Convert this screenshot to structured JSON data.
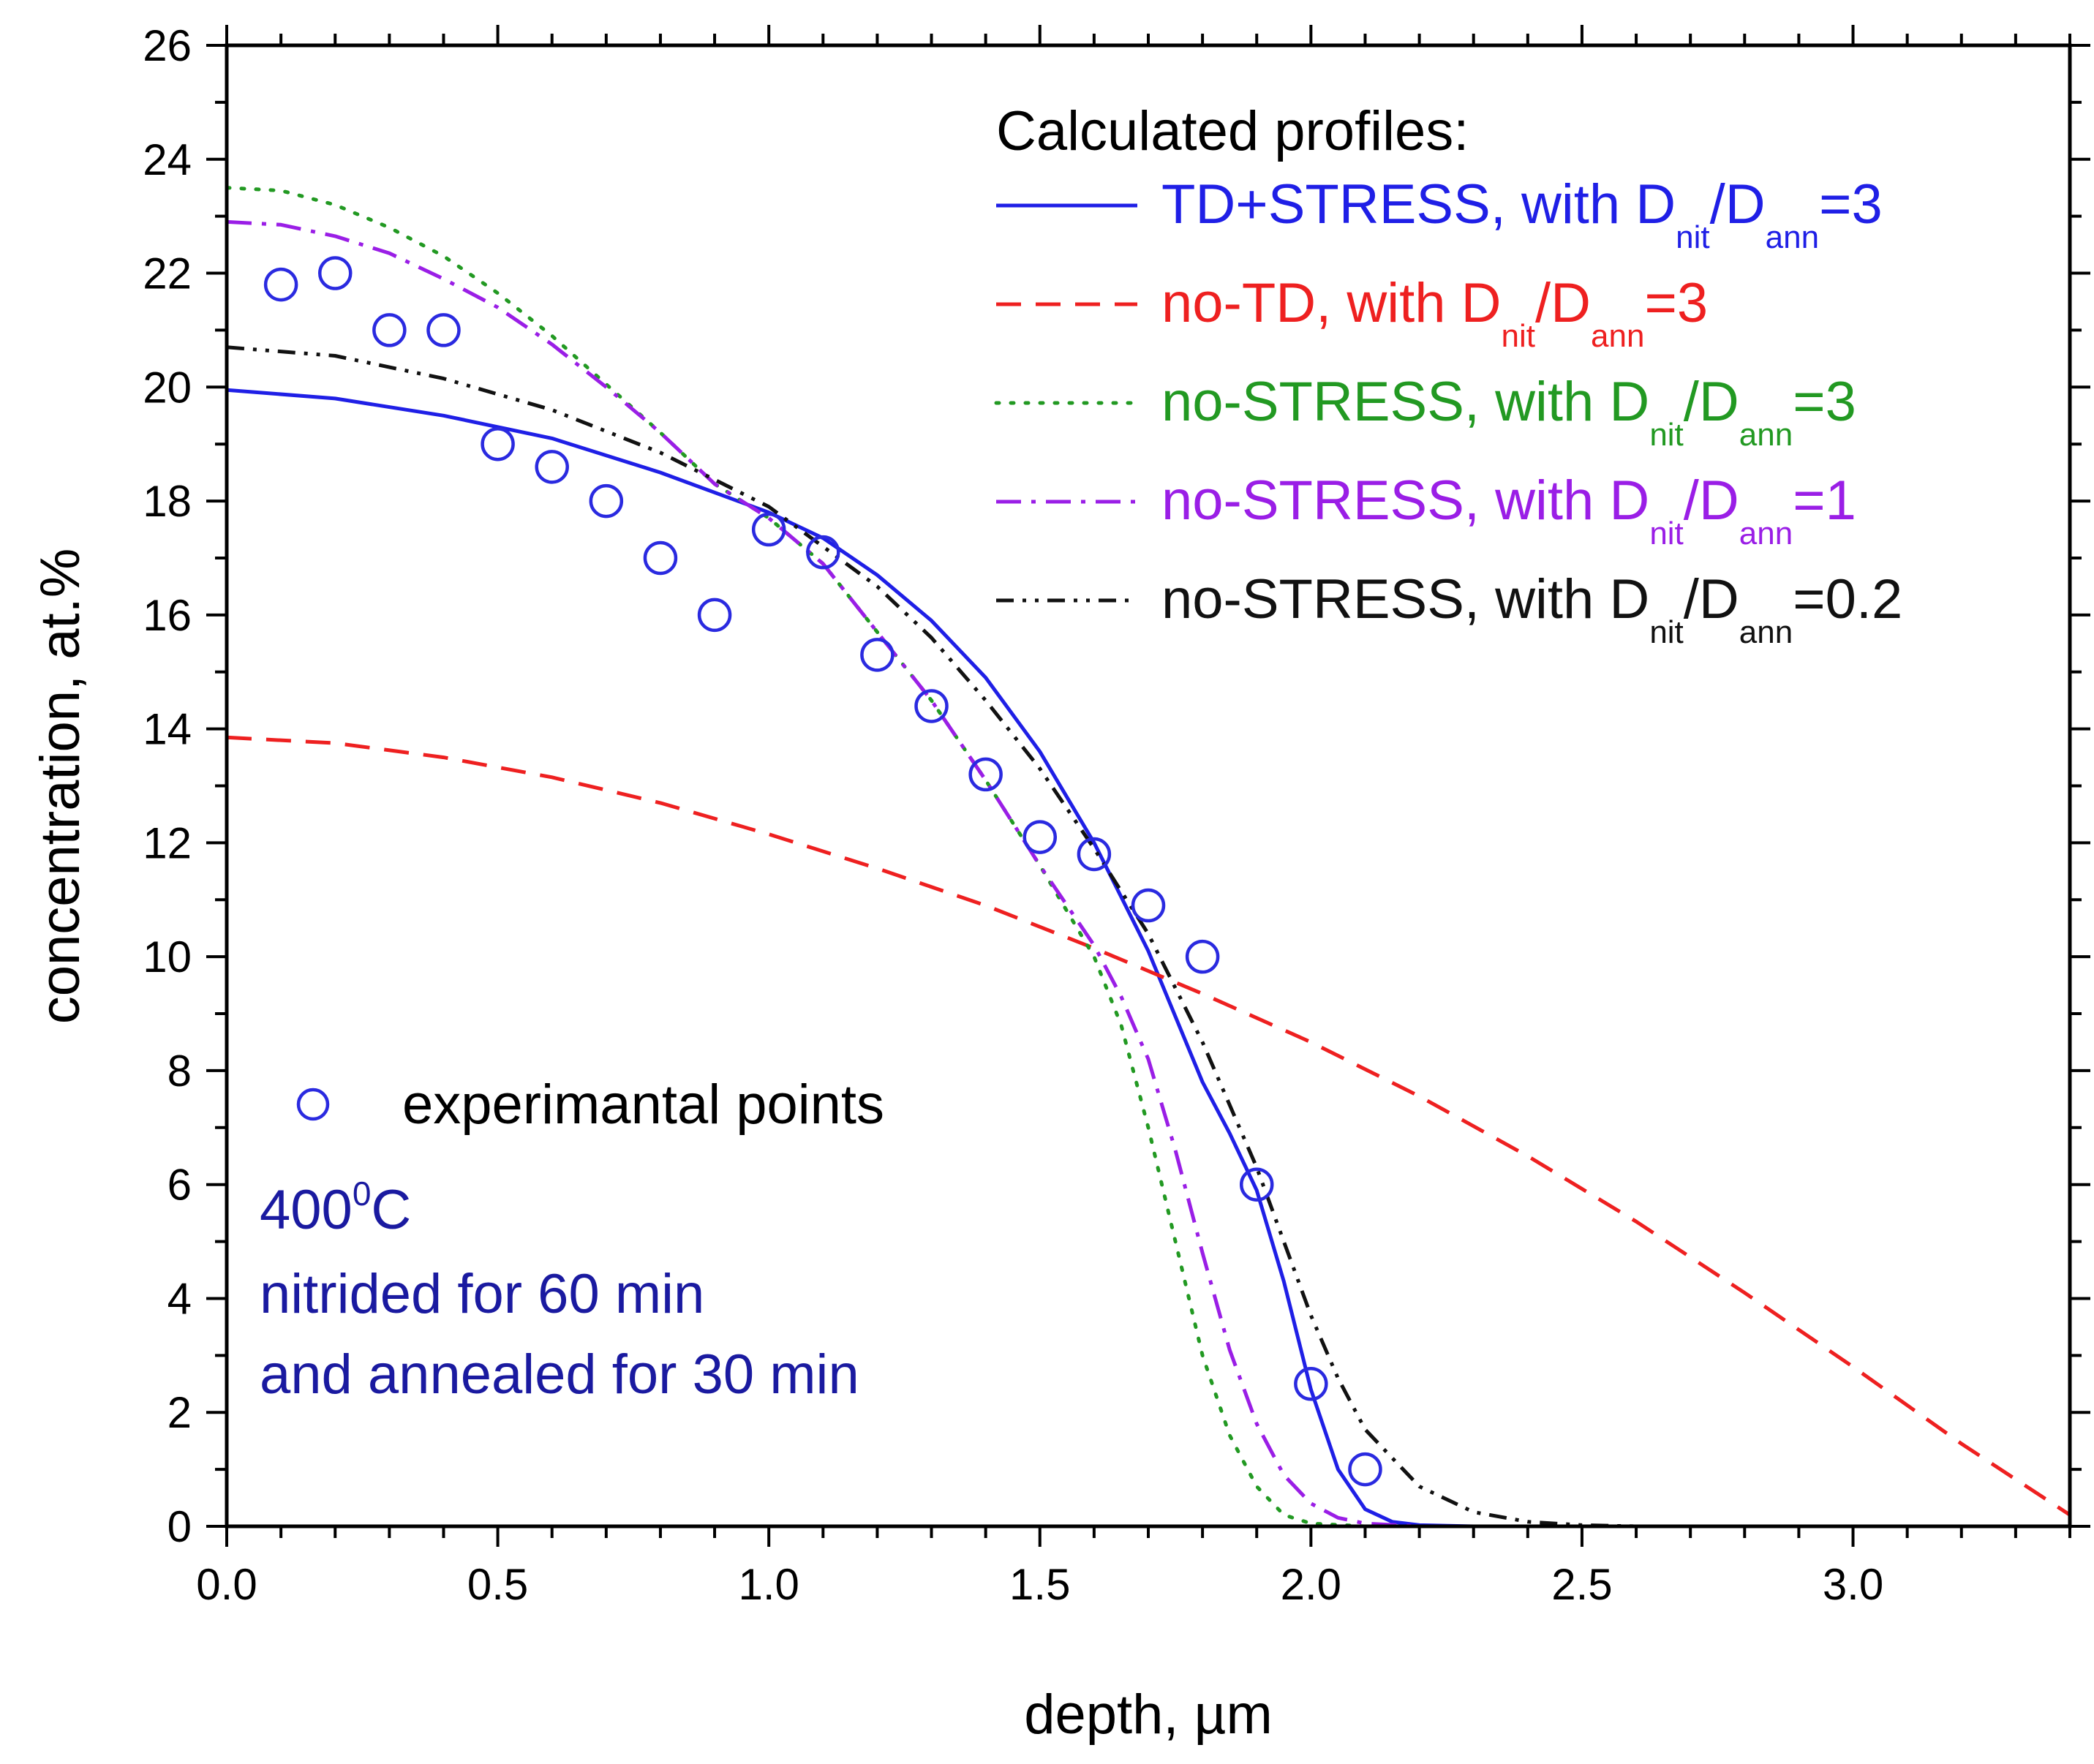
{
  "chart_data": {
    "type": "line",
    "xlabel": "depth, µm",
    "ylabel": "concentration, at.%",
    "xlim": [
      0,
      3.4
    ],
    "ylim": [
      0,
      26
    ],
    "x_ticks": [
      "0.0",
      "0.5",
      "1.0",
      "1.5",
      "2.0",
      "2.5",
      "3.0"
    ],
    "x_tick_values": [
      0,
      0.5,
      1.0,
      1.5,
      2.0,
      2.5,
      3.0
    ],
    "y_ticks": [
      "0",
      "2",
      "4",
      "6",
      "8",
      "10",
      "12",
      "14",
      "16",
      "18",
      "20",
      "22",
      "24",
      "26"
    ],
    "y_tick_values": [
      0,
      2,
      4,
      6,
      8,
      10,
      12,
      14,
      16,
      18,
      20,
      22,
      24,
      26
    ],
    "grid": false,
    "legend_title": "Calculated profiles:",
    "series": [
      {
        "name": "TD+STRESS, with D_nit/D_ann=3",
        "label_main": "TD+STRESS, with D",
        "label_sub1": "nit",
        "label_mid": "/D",
        "label_sub2": "ann",
        "label_end": "=3",
        "color": "#1f1fe6",
        "style": "solid",
        "x": [
          0,
          0.2,
          0.4,
          0.6,
          0.8,
          1.0,
          1.1,
          1.2,
          1.3,
          1.4,
          1.5,
          1.6,
          1.7,
          1.8,
          1.85,
          1.9,
          1.95,
          2.0,
          2.05,
          2.1,
          2.15,
          2.2,
          2.3,
          2.5,
          3.4
        ],
        "y": [
          19.95,
          19.8,
          19.5,
          19.1,
          18.5,
          17.8,
          17.35,
          16.7,
          15.9,
          14.9,
          13.6,
          12.0,
          10.1,
          7.8,
          6.9,
          5.9,
          4.3,
          2.4,
          1.0,
          0.3,
          0.08,
          0.02,
          0,
          0,
          0
        ]
      },
      {
        "name": "no-TD, with D_nit/D_ann=3",
        "label_main": "no-TD, with D",
        "label_sub1": "nit",
        "label_mid": "/D",
        "label_sub2": "ann",
        "label_end": "=3",
        "color": "#ee2020",
        "style": "dashed",
        "x": [
          0,
          0.2,
          0.4,
          0.6,
          0.8,
          1.0,
          1.2,
          1.4,
          1.6,
          1.8,
          2.0,
          2.2,
          2.4,
          2.6,
          2.8,
          3.0,
          3.2,
          3.4
        ],
        "y": [
          13.85,
          13.75,
          13.5,
          13.15,
          12.7,
          12.15,
          11.55,
          10.9,
          10.15,
          9.35,
          8.5,
          7.55,
          6.5,
          5.35,
          4.1,
          2.8,
          1.45,
          0.2
        ]
      },
      {
        "name": "no-STRESS, with D_nit/D_ann=3",
        "label_main": "no-STRESS, with D",
        "label_sub1": "nit",
        "label_mid": "/D",
        "label_sub2": "ann",
        "label_end": "=3",
        "color": "#229922",
        "style": "dotted",
        "x": [
          0,
          0.1,
          0.2,
          0.3,
          0.4,
          0.5,
          0.6,
          0.7,
          0.8,
          0.9,
          1.0,
          1.1,
          1.2,
          1.3,
          1.4,
          1.5,
          1.6,
          1.65,
          1.7,
          1.75,
          1.8,
          1.85,
          1.9,
          1.95,
          2.0,
          2.1,
          3.4
        ],
        "y": [
          23.5,
          23.45,
          23.2,
          22.8,
          22.3,
          21.65,
          20.9,
          20.05,
          19.2,
          18.3,
          17.7,
          16.9,
          15.7,
          14.5,
          13.1,
          11.6,
          10.0,
          8.8,
          7.0,
          5.0,
          3.0,
          1.6,
          0.7,
          0.2,
          0.05,
          0,
          0
        ]
      },
      {
        "name": "no-STRESS, with D_nit/D_ann=1",
        "label_main": "no-STRESS, with D",
        "label_sub1": "nit",
        "label_mid": "/D",
        "label_sub2": "ann",
        "label_end": "=1",
        "color": "#9a1ee6",
        "style": "dashdot",
        "x": [
          0,
          0.1,
          0.2,
          0.3,
          0.4,
          0.5,
          0.6,
          0.7,
          0.8,
          0.9,
          1.0,
          1.1,
          1.2,
          1.3,
          1.4,
          1.5,
          1.6,
          1.65,
          1.7,
          1.75,
          1.8,
          1.85,
          1.9,
          1.95,
          2.0,
          2.05,
          2.1,
          2.2,
          3.4
        ],
        "y": [
          22.9,
          22.85,
          22.65,
          22.35,
          21.9,
          21.4,
          20.75,
          20.0,
          19.2,
          18.3,
          17.7,
          16.9,
          15.7,
          14.5,
          13.1,
          11.6,
          10.2,
          9.3,
          8.2,
          6.6,
          4.8,
          3.1,
          1.8,
          0.9,
          0.4,
          0.15,
          0.05,
          0,
          0
        ]
      },
      {
        "name": "no-STRESS, with D_nit/D_ann=0.2",
        "label_main": "no-STRESS, with D",
        "label_sub1": "nit",
        "label_mid": "/D",
        "label_sub2": "ann",
        "label_end": "=0.2",
        "color": "#111111",
        "style": "dashdotdot",
        "x": [
          0,
          0.2,
          0.4,
          0.6,
          0.8,
          1.0,
          1.2,
          1.3,
          1.4,
          1.5,
          1.6,
          1.7,
          1.8,
          1.9,
          1.95,
          2.0,
          2.05,
          2.1,
          2.2,
          2.3,
          2.4,
          2.5,
          2.6,
          3.4
        ],
        "y": [
          20.7,
          20.55,
          20.15,
          19.6,
          18.85,
          17.9,
          16.5,
          15.6,
          14.5,
          13.3,
          11.9,
          10.4,
          8.5,
          6.3,
          5.0,
          3.7,
          2.6,
          1.7,
          0.7,
          0.25,
          0.08,
          0.02,
          0,
          0
        ]
      }
    ],
    "experimental": {
      "name": "experimantal points",
      "color": "#2a2ae0",
      "marker": "open-circle",
      "x": [
        0.1,
        0.2,
        0.3,
        0.4,
        0.5,
        0.6,
        0.7,
        0.8,
        0.9,
        1.0,
        1.1,
        1.2,
        1.3,
        1.4,
        1.5,
        1.6,
        1.7,
        1.8,
        1.9,
        2.0,
        2.1
      ],
      "y": [
        21.8,
        22.0,
        21.0,
        21.0,
        19.0,
        18.6,
        18.0,
        17.0,
        16.0,
        17.5,
        17.1,
        15.3,
        14.4,
        13.2,
        12.1,
        11.8,
        10.9,
        10.0,
        6.0,
        2.5,
        1.0
      ]
    },
    "annotations": {
      "temperature_value": "400",
      "temperature_sup": "0",
      "temperature_unit": "C",
      "line2": "nitrided for 60 min",
      "line3": "and annealed for 30 min",
      "color": "#1a1aa0"
    }
  }
}
